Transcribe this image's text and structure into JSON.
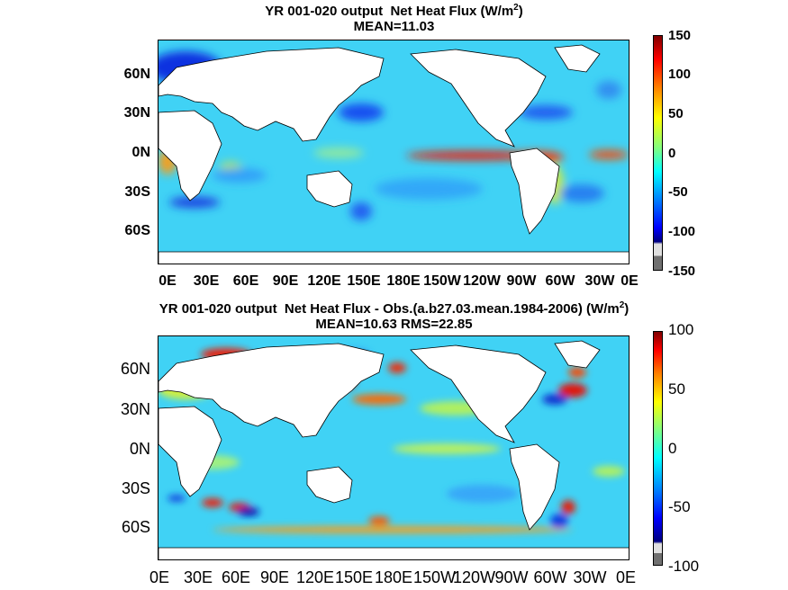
{
  "panels": [
    {
      "title_line1": "YR 001-020 output  Net Heat Flux (W/m",
      "title_sup": "2",
      "title_close": ")",
      "title_line2": "MEAN=11.03",
      "y_ticks": [
        "60N",
        "30N",
        "0N",
        "30S",
        "60S"
      ],
      "x_ticks": [
        "0E",
        "30E",
        "60E",
        "90E",
        "120E",
        "150E",
        "180E",
        "150W",
        "120W",
        "90W",
        "60W",
        "30W",
        "0E"
      ],
      "colorbar_ticks": [
        "150",
        "100",
        "50",
        "0",
        "-50",
        "-100",
        "-150"
      ]
    },
    {
      "title_line1": "YR 001-020 output  Net Heat Flux - Obs.(a.b27.03.mean.1984-2006) (W/m",
      "title_sup": "2",
      "title_close": ")",
      "title_line2": "MEAN=10.63 RMS=22.85",
      "y_ticks": [
        "60N",
        "30N",
        "0N",
        "30S",
        "60S"
      ],
      "x_ticks": [
        "0E",
        "30E",
        "60E",
        "90E",
        "120E",
        "150E",
        "180E",
        "150W",
        "120W",
        "90W",
        "60W",
        "30W",
        "0E"
      ],
      "colorbar_ticks": [
        "100",
        "50",
        "0",
        "-50",
        "-100"
      ]
    }
  ],
  "chart_data": [
    {
      "type": "heatmap",
      "title": "YR 001-020 output  Net Heat Flux (W/m2)",
      "subtitle": "MEAN=11.03",
      "x_range": [
        "0E",
        "0E"
      ],
      "y_range": [
        "80S",
        "85N"
      ],
      "color_range": [
        -150,
        150
      ],
      "colormap": "jet",
      "colorbar_ticks": [
        150,
        100,
        50,
        0,
        -50,
        -100,
        -150
      ],
      "mean": 11.03,
      "colors": {
        "ocean_base": "#40d2f5",
        "land": "#ffffff",
        "high": "#e8100a",
        "low": "#0010c8",
        "below_range": "#808080"
      }
    },
    {
      "type": "heatmap",
      "title": "YR 001-020 output  Net Heat Flux - Obs.(a.b27.03.mean.1984-2006) (W/m2)",
      "subtitle": "MEAN=10.63 RMS=22.85",
      "x_range": [
        "0E",
        "0E"
      ],
      "y_range": [
        "80S",
        "85N"
      ],
      "color_range": [
        -100,
        100
      ],
      "colormap": "jet",
      "colorbar_ticks": [
        100,
        50,
        0,
        -50,
        -100
      ],
      "mean": 10.63,
      "rms": 22.85,
      "colors": {
        "ocean_base": "#40d2f5",
        "land": "#ffffff",
        "high": "#e8100a",
        "low": "#0010c8",
        "below_range": "#808080"
      }
    }
  ]
}
